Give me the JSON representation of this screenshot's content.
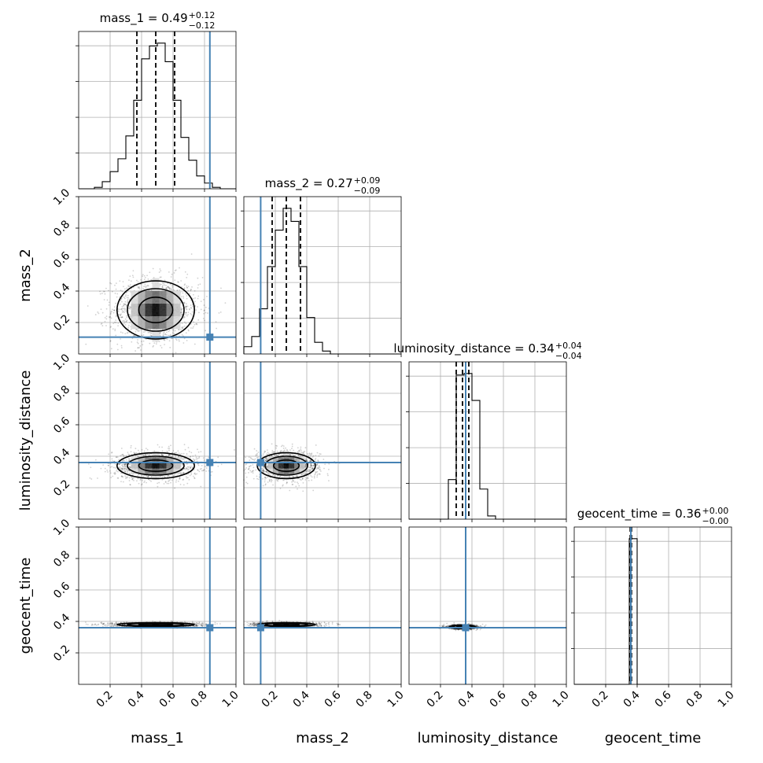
{
  "chart_data": {
    "type": "corner",
    "parameters": [
      "mass_1",
      "mass_2",
      "luminosity_distance",
      "geocent_time"
    ],
    "axis_labels": [
      "mass_1",
      "mass_2",
      "luminosity_distance",
      "geocent_time"
    ],
    "range": [
      0,
      1
    ],
    "ticks": [
      0.2,
      0.4,
      0.6,
      0.8,
      1.0
    ],
    "tick_labels": [
      "0.2",
      "0.4",
      "0.6",
      "0.8",
      "1.0"
    ],
    "grid": true,
    "truth_color": "#4682b4",
    "marginals": [
      {
        "parameter": "mass_1",
        "title_text": "mass_1 = 0.49",
        "title_plus": "+0.12",
        "title_minus": "−0.12",
        "median": 0.49,
        "q_low": 0.37,
        "q_high": 0.61,
        "truth": 0.834,
        "bin_edges": [
          0.0,
          0.05,
          0.1,
          0.15,
          0.2,
          0.25,
          0.3,
          0.35,
          0.4,
          0.45,
          0.5,
          0.55,
          0.6,
          0.65,
          0.7,
          0.75,
          0.8,
          0.85,
          0.9,
          0.95,
          1.0
        ],
        "counts": [
          0,
          0,
          0.01,
          0.05,
          0.12,
          0.21,
          0.37,
          0.62,
          0.91,
          1.0,
          1.02,
          0.89,
          0.62,
          0.36,
          0.2,
          0.09,
          0.04,
          0.01,
          0,
          0
        ]
      },
      {
        "parameter": "mass_2",
        "title_text": "mass_2 = 0.27",
        "title_plus": "+0.09",
        "title_minus": "−0.09",
        "median": 0.27,
        "q_low": 0.18,
        "q_high": 0.36,
        "truth": 0.107,
        "bin_edges": [
          0.0,
          0.05,
          0.1,
          0.15,
          0.2,
          0.25,
          0.3,
          0.35,
          0.4,
          0.45,
          0.5,
          0.55,
          0.6,
          0.65,
          0.7,
          0.75,
          0.8,
          0.85,
          0.9,
          0.95,
          1.0
        ],
        "counts": [
          0.05,
          0.12,
          0.31,
          0.6,
          0.85,
          1.0,
          0.91,
          0.6,
          0.25,
          0.08,
          0.02,
          0,
          0,
          0,
          0,
          0,
          0,
          0,
          0,
          0
        ]
      },
      {
        "parameter": "luminosity_distance",
        "title_text": "luminosity_distance = 0.34",
        "title_plus": "+0.04",
        "title_minus": "−0.04",
        "median": 0.34,
        "q_low": 0.3,
        "q_high": 0.38,
        "truth": 0.36,
        "bin_edges": [
          0.0,
          0.05,
          0.1,
          0.15,
          0.2,
          0.25,
          0.3,
          0.35,
          0.4,
          0.45,
          0.5,
          0.55,
          0.6,
          0.65,
          0.7,
          0.75,
          0.8,
          0.85,
          0.9,
          0.95,
          1.0
        ],
        "counts": [
          0,
          0,
          0,
          0,
          0,
          0.25,
          0.91,
          0.92,
          0.75,
          0.19,
          0.02,
          0,
          0,
          0,
          0,
          0,
          0,
          0,
          0,
          0
        ]
      },
      {
        "parameter": "geocent_time",
        "title_text": "geocent_time = 0.36",
        "title_plus": "+0.00",
        "title_minus": "−0.00",
        "median": 0.36,
        "q_low": 0.356,
        "q_high": 0.364,
        "truth": 0.36,
        "bin_edges": [
          0.0,
          0.05,
          0.1,
          0.15,
          0.2,
          0.25,
          0.3,
          0.35,
          0.4,
          0.45,
          0.5,
          0.55,
          0.6,
          0.65,
          0.7,
          0.75,
          0.8,
          0.85,
          0.9,
          0.95,
          1.0
        ],
        "counts": [
          0,
          0,
          0,
          0,
          0,
          0,
          0,
          0.915,
          0,
          0,
          0,
          0,
          0,
          0,
          0,
          0,
          0,
          0,
          0,
          0
        ]
      }
    ],
    "joint_distributions": [
      {
        "x": "mass_1",
        "y": "mass_2",
        "center_x": 0.49,
        "center_y": 0.28,
        "sigma_x": 0.12,
        "sigma_y": 0.09
      },
      {
        "x": "mass_1",
        "y": "luminosity_distance",
        "center_x": 0.49,
        "center_y": 0.34,
        "sigma_x": 0.12,
        "sigma_y": 0.04
      },
      {
        "x": "mass_2",
        "y": "luminosity_distance",
        "center_x": 0.27,
        "center_y": 0.34,
        "sigma_x": 0.09,
        "sigma_y": 0.04
      },
      {
        "x": "mass_1",
        "y": "geocent_time",
        "center_x": 0.49,
        "center_y": 0.38,
        "sigma_x": 0.12,
        "sigma_y": 0.006
      },
      {
        "x": "mass_2",
        "y": "geocent_time",
        "center_x": 0.27,
        "center_y": 0.38,
        "sigma_x": 0.09,
        "sigma_y": 0.006
      },
      {
        "x": "luminosity_distance",
        "y": "geocent_time",
        "center_x": 0.34,
        "center_y": 0.365,
        "sigma_x": 0.04,
        "sigma_y": 0.006
      }
    ]
  }
}
